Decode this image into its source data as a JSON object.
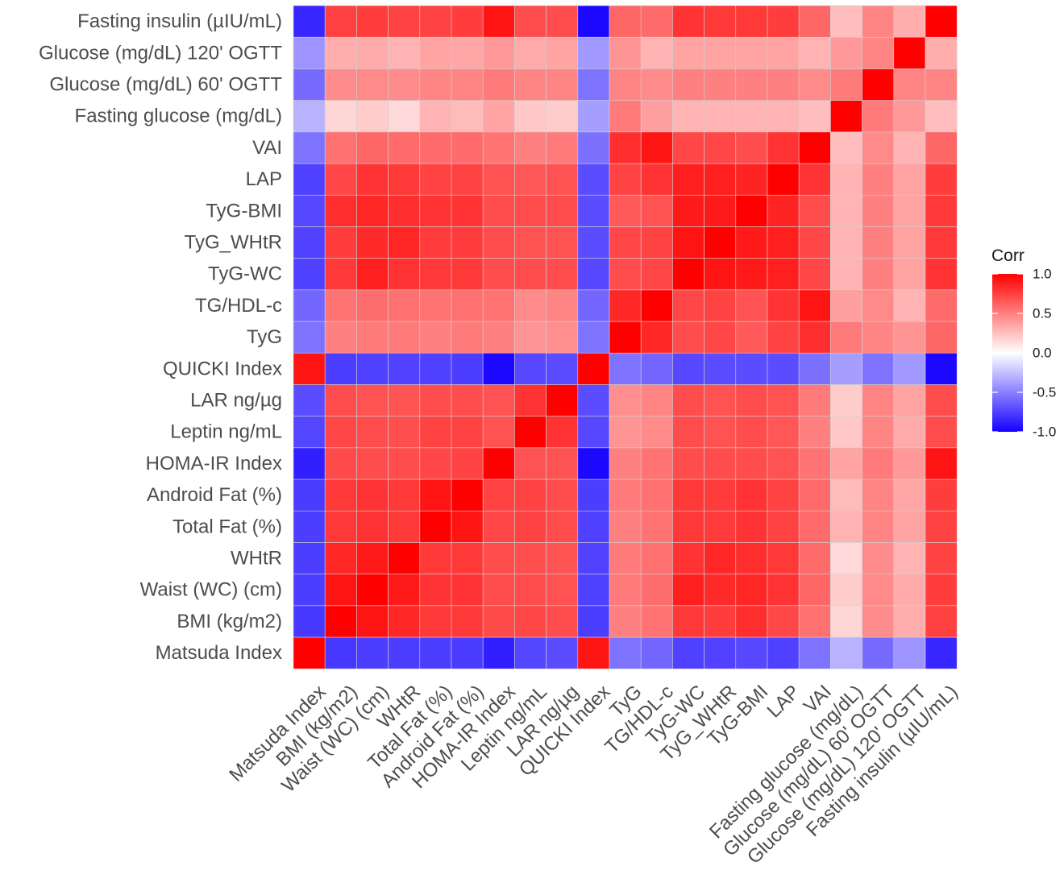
{
  "chart_data": {
    "type": "heatmap",
    "title": "",
    "xlabel": "",
    "ylabel": "",
    "legend": {
      "title": "Corr",
      "position": "right",
      "range": [
        -1,
        1
      ],
      "ticks": [
        {
          "value": 1.0,
          "label": "1.0"
        },
        {
          "value": 0.5,
          "label": "0.5"
        },
        {
          "value": 0.0,
          "label": "0.0"
        },
        {
          "value": -0.5,
          "label": "-0.5"
        },
        {
          "value": -1.0,
          "label": "-1.0"
        }
      ]
    },
    "colors": {
      "low": "#1500ff",
      "mid": "#ffffff",
      "high": "#ff0000",
      "grid": "#d0d0d0"
    },
    "variables": [
      "Matsuda Index",
      "BMI (kg/m2)",
      "Waist (WC) (cm)",
      "WHtR",
      "Total Fat (%)",
      "Android Fat (%)",
      "HOMA-IR Index",
      "Leptin ng/mL",
      "LAR ng/µg",
      "QUICKI Index",
      "TyG",
      "TG/HDL-c",
      "TyG-WC",
      "TyG_WHtR",
      "TyG-BMI",
      "LAP",
      "VAI",
      "Fasting glucose (mg/dL)",
      "Glucose (mg/dL) 60' OGTT",
      "Glucose (mg/dL) 120' OGTT",
      "Fasting insulin (µIU/mL)"
    ],
    "matrix": [
      [
        1.0,
        -0.78,
        -0.76,
        -0.76,
        -0.76,
        -0.77,
        -0.88,
        -0.73,
        -0.7,
        0.92,
        -0.55,
        -0.6,
        -0.75,
        -0.74,
        -0.72,
        -0.75,
        -0.55,
        -0.3,
        -0.58,
        -0.42,
        -0.85
      ],
      [
        -0.78,
        1.0,
        0.92,
        0.85,
        0.78,
        0.78,
        0.71,
        0.72,
        0.7,
        -0.76,
        0.5,
        0.55,
        0.78,
        0.76,
        0.82,
        0.72,
        0.56,
        0.16,
        0.45,
        0.32,
        0.75
      ],
      [
        -0.76,
        0.92,
        1.0,
        0.9,
        0.8,
        0.8,
        0.7,
        0.7,
        0.68,
        -0.75,
        0.52,
        0.57,
        0.88,
        0.83,
        0.85,
        0.8,
        0.6,
        0.2,
        0.46,
        0.33,
        0.76
      ],
      [
        -0.76,
        0.85,
        0.9,
        1.0,
        0.78,
        0.78,
        0.7,
        0.69,
        0.67,
        -0.74,
        0.52,
        0.56,
        0.8,
        0.85,
        0.82,
        0.78,
        0.58,
        0.15,
        0.45,
        0.3,
        0.74
      ],
      [
        -0.76,
        0.78,
        0.8,
        0.78,
        1.0,
        0.92,
        0.72,
        0.74,
        0.7,
        -0.75,
        0.5,
        0.55,
        0.78,
        0.77,
        0.8,
        0.74,
        0.58,
        0.3,
        0.48,
        0.36,
        0.74
      ],
      [
        -0.77,
        0.78,
        0.8,
        0.78,
        0.92,
        1.0,
        0.74,
        0.74,
        0.7,
        -0.76,
        0.52,
        0.56,
        0.78,
        0.77,
        0.8,
        0.74,
        0.58,
        0.27,
        0.48,
        0.35,
        0.76
      ],
      [
        -0.88,
        0.71,
        0.7,
        0.7,
        0.72,
        0.74,
        1.0,
        0.68,
        0.68,
        -0.97,
        0.5,
        0.55,
        0.7,
        0.7,
        0.7,
        0.68,
        0.55,
        0.36,
        0.52,
        0.4,
        0.92
      ],
      [
        -0.73,
        0.72,
        0.7,
        0.69,
        0.74,
        0.74,
        0.68,
        1.0,
        0.8,
        -0.72,
        0.42,
        0.46,
        0.7,
        0.68,
        0.7,
        0.66,
        0.5,
        0.22,
        0.48,
        0.33,
        0.7
      ],
      [
        -0.7,
        0.7,
        0.68,
        0.67,
        0.7,
        0.7,
        0.68,
        0.8,
        1.0,
        -0.7,
        0.44,
        0.48,
        0.7,
        0.68,
        0.7,
        0.68,
        0.52,
        0.2,
        0.48,
        0.36,
        0.7
      ],
      [
        0.92,
        -0.76,
        -0.75,
        -0.74,
        -0.75,
        -0.76,
        -0.97,
        -0.72,
        -0.7,
        1.0,
        -0.55,
        -0.6,
        -0.72,
        -0.7,
        -0.7,
        -0.7,
        -0.56,
        -0.38,
        -0.55,
        -0.4,
        -0.97
      ],
      [
        -0.55,
        0.5,
        0.52,
        0.52,
        0.5,
        0.52,
        0.5,
        0.42,
        0.44,
        -0.55,
        1.0,
        0.85,
        0.7,
        0.72,
        0.65,
        0.74,
        0.82,
        0.52,
        0.48,
        0.42,
        0.6
      ],
      [
        -0.6,
        0.55,
        0.57,
        0.56,
        0.55,
        0.56,
        0.55,
        0.46,
        0.48,
        -0.6,
        0.85,
        1.0,
        0.72,
        0.74,
        0.68,
        0.8,
        0.92,
        0.38,
        0.46,
        0.3,
        0.58
      ],
      [
        -0.75,
        0.78,
        0.88,
        0.8,
        0.78,
        0.78,
        0.7,
        0.7,
        0.7,
        -0.72,
        0.7,
        0.72,
        1.0,
        0.92,
        0.9,
        0.88,
        0.72,
        0.3,
        0.5,
        0.36,
        0.8
      ],
      [
        -0.74,
        0.76,
        0.83,
        0.85,
        0.77,
        0.77,
        0.7,
        0.68,
        0.68,
        -0.7,
        0.72,
        0.74,
        0.92,
        1.0,
        0.9,
        0.88,
        0.72,
        0.3,
        0.5,
        0.36,
        0.78
      ],
      [
        -0.72,
        0.82,
        0.85,
        0.82,
        0.8,
        0.8,
        0.7,
        0.7,
        0.7,
        -0.7,
        0.65,
        0.68,
        0.9,
        0.9,
        1.0,
        0.86,
        0.7,
        0.3,
        0.5,
        0.36,
        0.78
      ],
      [
        -0.75,
        0.72,
        0.8,
        0.78,
        0.74,
        0.74,
        0.68,
        0.66,
        0.68,
        -0.7,
        0.74,
        0.8,
        0.88,
        0.88,
        0.86,
        1.0,
        0.8,
        0.3,
        0.5,
        0.36,
        0.76
      ],
      [
        -0.55,
        0.56,
        0.6,
        0.58,
        0.58,
        0.58,
        0.55,
        0.5,
        0.52,
        -0.56,
        0.82,
        0.92,
        0.72,
        0.72,
        0.7,
        0.8,
        1.0,
        0.26,
        0.46,
        0.3,
        0.6
      ],
      [
        -0.3,
        0.16,
        0.2,
        0.15,
        0.3,
        0.27,
        0.36,
        0.22,
        0.2,
        -0.38,
        0.52,
        0.38,
        0.3,
        0.3,
        0.3,
        0.3,
        0.26,
        1.0,
        0.52,
        0.4,
        0.26
      ],
      [
        -0.58,
        0.45,
        0.46,
        0.45,
        0.48,
        0.48,
        0.52,
        0.48,
        0.48,
        -0.55,
        0.48,
        0.46,
        0.5,
        0.5,
        0.5,
        0.5,
        0.46,
        0.52,
        1.0,
        0.48,
        0.48
      ],
      [
        -0.42,
        0.32,
        0.33,
        0.3,
        0.36,
        0.35,
        0.4,
        0.33,
        0.36,
        -0.4,
        0.42,
        0.3,
        0.36,
        0.36,
        0.36,
        0.36,
        0.3,
        0.4,
        0.48,
        1.0,
        0.32
      ],
      [
        -0.85,
        0.75,
        0.76,
        0.74,
        0.74,
        0.76,
        0.92,
        0.7,
        0.7,
        -0.97,
        0.6,
        0.58,
        0.8,
        0.78,
        0.78,
        0.76,
        0.6,
        0.26,
        0.48,
        0.32,
        1.0
      ]
    ]
  }
}
